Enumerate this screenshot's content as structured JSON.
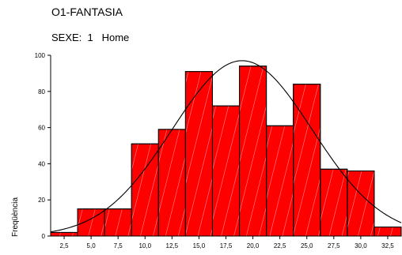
{
  "chart_data": {
    "type": "bar",
    "title": "O1-FANTASIA",
    "subtitle": "SEXE:  1   Home",
    "ylabel": "Freqüència",
    "xlabel": "",
    "bin_edges": [
      1.25,
      3.75,
      6.25,
      8.75,
      11.25,
      13.75,
      16.25,
      18.75,
      21.25,
      23.75,
      26.25,
      28.75,
      31.25,
      33.75
    ],
    "x_tick_labels": [
      "2,5",
      "5,0",
      "7,5",
      "10,0",
      "12,5",
      "15,0",
      "17,5",
      "20,0",
      "22,5",
      "25,0",
      "27,5",
      "30,0",
      "32,5"
    ],
    "x_ticks": [
      2.5,
      5.0,
      7.5,
      10.0,
      12.5,
      15.0,
      17.5,
      20.0,
      22.5,
      25.0,
      27.5,
      30.0,
      32.5
    ],
    "values": [
      2,
      15,
      15,
      51,
      59,
      91,
      72,
      94,
      61,
      84,
      37,
      36,
      5
    ],
    "y_ticks": [
      0,
      20,
      40,
      60,
      80,
      100
    ],
    "ylim": [
      0,
      100
    ],
    "xlim": [
      1.25,
      33.75
    ],
    "normal_curve": {
      "mean": 19.0,
      "sd": 6.5,
      "peak": 97
    },
    "colors": {
      "bar_fill": "#ff0000",
      "bar_stroke": "#000000",
      "curve": "#000000",
      "hatch": "#ffffff"
    },
    "grid": false,
    "legend": "none"
  }
}
